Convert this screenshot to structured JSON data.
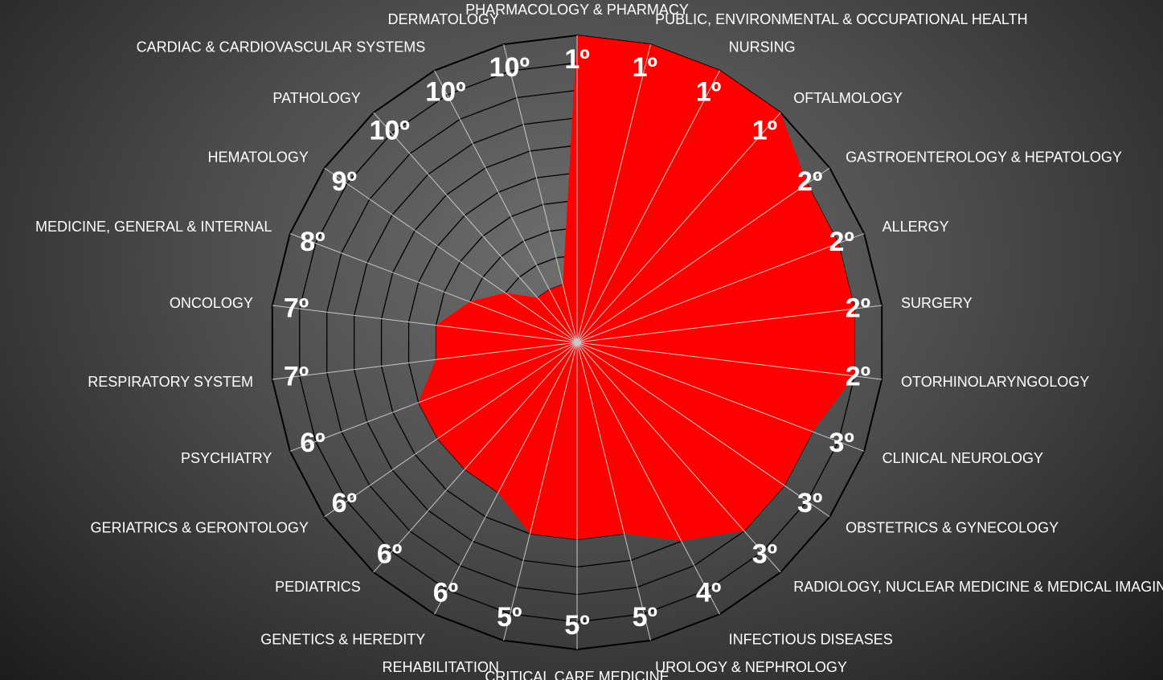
{
  "chart_data": {
    "type": "radar",
    "title": "",
    "axis_max": 10,
    "rings": 10,
    "fill_color": "#ff0000",
    "ring_color": "#000000",
    "spoke_color": "#c8c8c8",
    "label_color": "#ffffff",
    "categories": [
      "PHARMACOLOGY & PHARMACY",
      "PUBLIC, ENVIRONMENTAL & OCCUPATIONAL HEALTH",
      "NURSING",
      "OFTALMOLOGY",
      "GASTROENTEROLOGY & HEPATOLOGY",
      "ALLERGY",
      "SURGERY",
      "OTORHINOLARYNGOLOGY",
      "CLINICAL NEUROLOGY",
      "OBSTETRICS & GYNECOLOGY",
      "RADIOLOGY, NUCLEAR MEDICINE & MEDICAL IMAGING",
      "INFECTIOUS DISEASES",
      "UROLOGY & NEPHROLOGY",
      "CRITICAL CARE MEDICINE",
      "REHABILITATION",
      "GENETICS & HEREDITY",
      "PEDIATRICS",
      "GERIATRICS & GERONTOLOGY",
      "PSYCHIATRY",
      "RESPIRATORY SYSTEM",
      "ONCOLOGY",
      "MEDICINE, GENERAL & INTERNAL",
      "HEMATOLOGY",
      "PATHOLOGY",
      "CARDIAC & CARDIOVASCULAR SYSTEMS",
      "DERMATOLOGY"
    ],
    "ranks": [
      "1º",
      "1º",
      "1º",
      "1º",
      "2º",
      "2º",
      "2º",
      "2º",
      "3º",
      "3º",
      "3º",
      "4º",
      "5º",
      "5º",
      "5º",
      "6º",
      "6º",
      "6º",
      "6º",
      "7º",
      "7º",
      "8º",
      "9º",
      "10º",
      "10º",
      "10º"
    ],
    "values": [
      1,
      1,
      1,
      1,
      2,
      2,
      2,
      2,
      3,
      3,
      3,
      4,
      5,
      5,
      5,
      6,
      6,
      6,
      6,
      7,
      7,
      8,
      9,
      10,
      10,
      10
    ]
  }
}
